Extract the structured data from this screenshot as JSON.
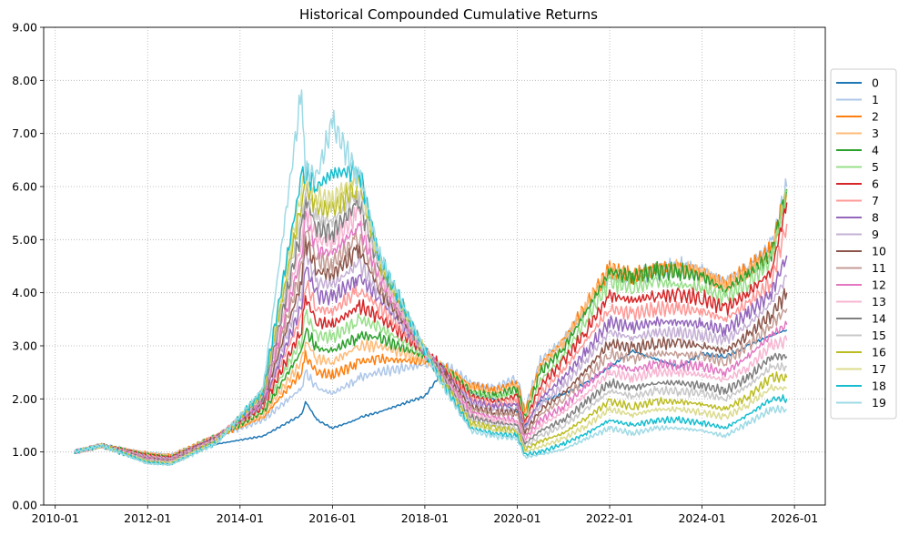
{
  "chart_data": {
    "type": "line",
    "title": "Historical Compounded Cumulative Returns",
    "xlabel": "",
    "ylabel": "",
    "x_start": "2010-06",
    "x_end": "2025-11",
    "xlim": [
      "2009-10",
      "2026-09"
    ],
    "ylim": [
      0,
      9
    ],
    "yticks": [
      "0.00",
      "1.00",
      "2.00",
      "3.00",
      "4.00",
      "5.00",
      "6.00",
      "7.00",
      "8.00",
      "9.00"
    ],
    "xticks": [
      "2010-01",
      "2012-01",
      "2014-01",
      "2016-01",
      "2018-01",
      "2020-01",
      "2022-01",
      "2024-01",
      "2026-01"
    ],
    "grid": true,
    "legend_position": "right-outside",
    "x": [
      "2010-06",
      "2011-01",
      "2012-01",
      "2012-07",
      "2013-07",
      "2014-07",
      "2015-05",
      "2015-06",
      "2015-09",
      "2016-01",
      "2016-07",
      "2016-08",
      "2017-01",
      "2018-01",
      "2018-06",
      "2019-01",
      "2019-07",
      "2020-01",
      "2020-03",
      "2020-07",
      "2021-01",
      "2021-07",
      "2022-01",
      "2022-07",
      "2023-01",
      "2023-07",
      "2024-01",
      "2024-07",
      "2025-01",
      "2025-07",
      "2025-11"
    ],
    "series": [
      {
        "name": "0",
        "color": "#1f77b4",
        "values": [
          1.0,
          1.1,
          0.95,
          0.9,
          1.15,
          1.3,
          1.7,
          1.95,
          1.6,
          1.45,
          1.6,
          1.65,
          1.75,
          2.05,
          2.55,
          2.1,
          2.0,
          1.75,
          1.5,
          1.95,
          2.1,
          2.3,
          2.6,
          2.9,
          2.75,
          2.6,
          2.85,
          2.8,
          3.0,
          3.2,
          3.3
        ]
      },
      {
        "name": "1",
        "color": "#aec7e8",
        "values": [
          1.0,
          1.12,
          0.98,
          0.95,
          1.3,
          1.6,
          2.2,
          2.5,
          2.2,
          2.1,
          2.35,
          2.4,
          2.5,
          2.65,
          2.65,
          2.3,
          2.2,
          2.4,
          1.8,
          2.7,
          3.1,
          3.7,
          4.3,
          4.3,
          4.4,
          4.5,
          4.4,
          4.2,
          4.5,
          4.9,
          6.0
        ]
      },
      {
        "name": "2",
        "color": "#ff7f0e",
        "values": [
          1.0,
          1.12,
          0.97,
          0.93,
          1.3,
          1.65,
          2.5,
          2.8,
          2.5,
          2.45,
          2.65,
          2.7,
          2.75,
          2.7,
          2.6,
          2.25,
          2.15,
          2.3,
          1.75,
          2.65,
          3.1,
          3.8,
          4.45,
          4.3,
          4.45,
          4.5,
          4.4,
          4.15,
          4.45,
          4.8,
          5.9
        ]
      },
      {
        "name": "3",
        "color": "#ffbb78",
        "values": [
          1.0,
          1.12,
          0.96,
          0.92,
          1.3,
          1.7,
          2.7,
          3.1,
          2.75,
          2.7,
          2.95,
          3.0,
          3.0,
          2.75,
          2.6,
          2.2,
          2.1,
          2.25,
          1.7,
          2.6,
          3.05,
          3.75,
          4.45,
          4.3,
          4.45,
          4.45,
          4.35,
          4.1,
          4.4,
          4.75,
          5.85
        ]
      },
      {
        "name": "4",
        "color": "#2ca02c",
        "values": [
          1.0,
          1.12,
          0.95,
          0.91,
          1.3,
          1.75,
          2.9,
          3.3,
          2.95,
          2.9,
          3.15,
          3.2,
          3.15,
          2.8,
          2.55,
          2.15,
          2.05,
          2.2,
          1.65,
          2.5,
          2.95,
          3.65,
          4.4,
          4.3,
          4.4,
          4.4,
          4.3,
          4.05,
          4.35,
          4.7,
          5.95
        ]
      },
      {
        "name": "5",
        "color": "#98df8a",
        "values": [
          1.0,
          1.12,
          0.94,
          0.9,
          1.3,
          1.8,
          3.1,
          3.6,
          3.2,
          3.15,
          3.45,
          3.5,
          3.35,
          2.85,
          2.55,
          2.1,
          2.0,
          2.1,
          1.6,
          2.35,
          2.8,
          3.5,
          4.2,
          4.1,
          4.2,
          4.15,
          4.1,
          3.9,
          4.2,
          4.6,
          5.9
        ]
      },
      {
        "name": "6",
        "color": "#d62728",
        "values": [
          1.0,
          1.12,
          0.93,
          0.89,
          1.3,
          1.85,
          3.3,
          3.9,
          3.45,
          3.4,
          3.7,
          3.75,
          3.55,
          2.9,
          2.55,
          2.05,
          1.95,
          2.05,
          1.55,
          2.25,
          2.7,
          3.3,
          3.95,
          3.85,
          3.95,
          3.95,
          3.9,
          3.7,
          4.0,
          4.4,
          5.7
        ]
      },
      {
        "name": "7",
        "color": "#ff9896",
        "values": [
          1.0,
          1.12,
          0.92,
          0.88,
          1.3,
          1.9,
          3.55,
          4.2,
          3.7,
          3.65,
          4.0,
          4.05,
          3.75,
          2.9,
          2.5,
          2.0,
          1.9,
          1.95,
          1.5,
          2.1,
          2.55,
          3.1,
          3.7,
          3.6,
          3.7,
          3.7,
          3.65,
          3.5,
          3.8,
          4.2,
          5.3
        ]
      },
      {
        "name": "8",
        "color": "#9467bd",
        "values": [
          1.0,
          1.12,
          0.9,
          0.87,
          1.28,
          1.9,
          3.75,
          4.5,
          3.95,
          3.9,
          4.25,
          4.3,
          3.9,
          2.9,
          2.5,
          1.95,
          1.85,
          1.9,
          1.45,
          2.0,
          2.4,
          2.9,
          3.45,
          3.35,
          3.45,
          3.45,
          3.4,
          3.3,
          3.6,
          4.0,
          4.7
        ]
      },
      {
        "name": "9",
        "color": "#c5b0d5",
        "values": [
          1.0,
          1.12,
          0.89,
          0.86,
          1.27,
          1.95,
          4.0,
          4.75,
          4.2,
          4.15,
          4.5,
          4.55,
          4.0,
          2.9,
          2.45,
          1.9,
          1.8,
          1.8,
          1.4,
          1.9,
          2.25,
          2.75,
          3.25,
          3.15,
          3.25,
          3.25,
          3.2,
          3.1,
          3.4,
          3.8,
          4.3
        ]
      },
      {
        "name": "10",
        "color": "#8c564b",
        "values": [
          1.0,
          1.12,
          0.88,
          0.85,
          1.26,
          1.95,
          4.2,
          5.0,
          4.4,
          4.35,
          4.75,
          4.8,
          4.1,
          2.9,
          2.45,
          1.85,
          1.75,
          1.75,
          1.35,
          1.8,
          2.1,
          2.55,
          3.05,
          2.95,
          3.05,
          3.05,
          3.0,
          2.9,
          3.2,
          3.6,
          4.0
        ]
      },
      {
        "name": "11",
        "color": "#c49c94",
        "values": [
          1.0,
          1.12,
          0.87,
          0.84,
          1.25,
          2.0,
          4.45,
          5.25,
          4.6,
          4.55,
          5.0,
          5.05,
          4.2,
          2.9,
          2.4,
          1.8,
          1.7,
          1.7,
          1.3,
          1.7,
          2.0,
          2.4,
          2.85,
          2.75,
          2.85,
          2.85,
          2.8,
          2.7,
          3.0,
          3.4,
          3.7
        ]
      },
      {
        "name": "12",
        "color": "#e377c2",
        "values": [
          1.0,
          1.12,
          0.86,
          0.83,
          1.24,
          2.0,
          4.7,
          5.45,
          4.8,
          4.75,
          5.2,
          5.25,
          4.3,
          2.9,
          2.4,
          1.75,
          1.65,
          1.6,
          1.25,
          1.6,
          1.85,
          2.25,
          2.65,
          2.55,
          2.65,
          2.65,
          2.6,
          2.5,
          2.8,
          3.2,
          3.4
        ]
      },
      {
        "name": "13",
        "color": "#f7b6d2",
        "values": [
          1.0,
          1.12,
          0.85,
          0.82,
          1.23,
          2.05,
          4.95,
          5.65,
          5.0,
          4.95,
          5.45,
          5.5,
          4.4,
          2.9,
          2.35,
          1.7,
          1.6,
          1.55,
          1.2,
          1.5,
          1.75,
          2.1,
          2.5,
          2.4,
          2.5,
          2.5,
          2.45,
          2.35,
          2.6,
          3.0,
          3.1
        ]
      },
      {
        "name": "14",
        "color": "#7f7f7f",
        "values": [
          1.0,
          1.12,
          0.84,
          0.81,
          1.22,
          2.05,
          5.2,
          5.8,
          5.2,
          5.15,
          5.65,
          5.7,
          4.5,
          2.9,
          2.35,
          1.65,
          1.55,
          1.5,
          1.15,
          1.4,
          1.6,
          1.95,
          2.3,
          2.2,
          2.3,
          2.3,
          2.25,
          2.15,
          2.4,
          2.8,
          2.8
        ]
      },
      {
        "name": "15",
        "color": "#c7c7c7",
        "values": [
          1.0,
          1.12,
          0.83,
          0.8,
          1.21,
          2.1,
          5.45,
          5.95,
          5.4,
          5.35,
          5.85,
          5.9,
          4.55,
          2.9,
          2.3,
          1.6,
          1.5,
          1.45,
          1.1,
          1.3,
          1.5,
          1.8,
          2.15,
          2.05,
          2.15,
          2.15,
          2.1,
          2.0,
          2.25,
          2.6,
          2.6
        ]
      },
      {
        "name": "16",
        "color": "#bcbd22",
        "values": [
          1.0,
          1.12,
          0.82,
          0.79,
          1.2,
          2.1,
          5.7,
          6.05,
          5.6,
          5.55,
          6.0,
          6.05,
          4.6,
          2.9,
          2.3,
          1.55,
          1.45,
          1.4,
          1.05,
          1.2,
          1.35,
          1.65,
          1.95,
          1.85,
          1.95,
          1.95,
          1.9,
          1.8,
          2.05,
          2.4,
          2.4
        ]
      },
      {
        "name": "17",
        "color": "#dbdb8d",
        "values": [
          1.0,
          1.12,
          0.81,
          0.78,
          1.19,
          2.15,
          5.95,
          6.15,
          5.8,
          5.75,
          6.15,
          6.2,
          4.65,
          2.9,
          2.25,
          1.5,
          1.4,
          1.35,
          1.0,
          1.1,
          1.25,
          1.5,
          1.8,
          1.7,
          1.8,
          1.8,
          1.75,
          1.65,
          1.9,
          2.2,
          2.2
        ]
      },
      {
        "name": "18",
        "color": "#17becf",
        "values": [
          1.0,
          1.12,
          0.8,
          0.77,
          1.18,
          2.15,
          6.2,
          6.25,
          6.0,
          6.25,
          6.3,
          6.3,
          4.7,
          2.9,
          2.25,
          1.45,
          1.35,
          1.3,
          0.95,
          1.0,
          1.15,
          1.35,
          1.6,
          1.5,
          1.6,
          1.6,
          1.55,
          1.45,
          1.7,
          2.0,
          2.0
        ]
      },
      {
        "name": "19",
        "color": "#9edae5",
        "values": [
          1.0,
          1.12,
          0.78,
          0.76,
          1.17,
          2.2,
          7.8,
          6.3,
          6.2,
          7.2,
          6.3,
          6.3,
          4.75,
          2.9,
          2.2,
          1.4,
          1.3,
          1.25,
          0.9,
          0.95,
          1.05,
          1.25,
          1.45,
          1.35,
          1.45,
          1.45,
          1.4,
          1.3,
          1.55,
          1.8,
          1.8
        ]
      }
    ]
  }
}
